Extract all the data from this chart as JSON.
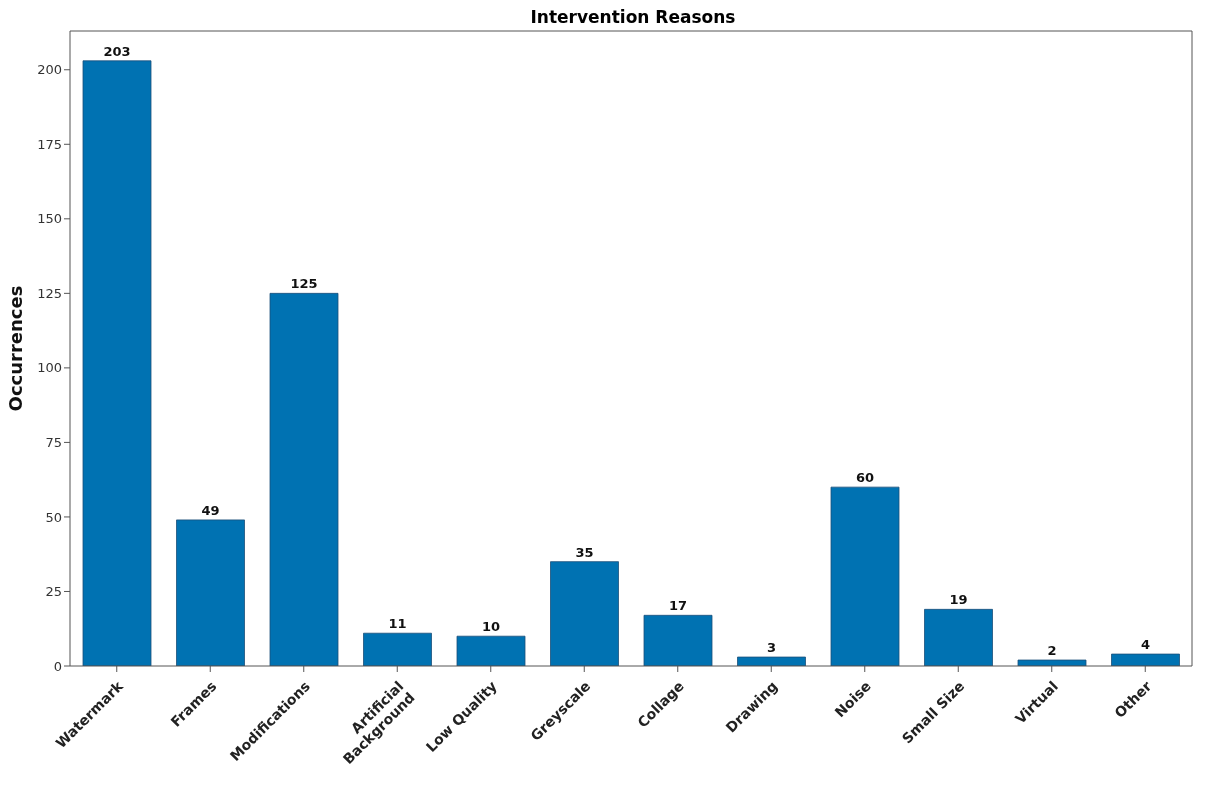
{
  "chart_data": {
    "type": "bar",
    "title": "Intervention Reasons",
    "ylabel": "Occurrences",
    "categories": [
      "Watermark",
      "Frames",
      "Modifications",
      "Artificial\nBackground",
      "Low Quality",
      "Greyscale",
      "Collage",
      "Drawing",
      "Noise",
      "Small Size",
      "Virtual",
      "Other"
    ],
    "values": [
      203,
      49,
      125,
      11,
      10,
      35,
      17,
      3,
      60,
      19,
      2,
      4
    ],
    "color": "#0072b2",
    "ylim": [
      0,
      213
    ],
    "yticks": [
      0,
      25,
      50,
      75,
      100,
      125,
      150,
      175,
      200
    ],
    "data_labels": true,
    "grid": false
  }
}
